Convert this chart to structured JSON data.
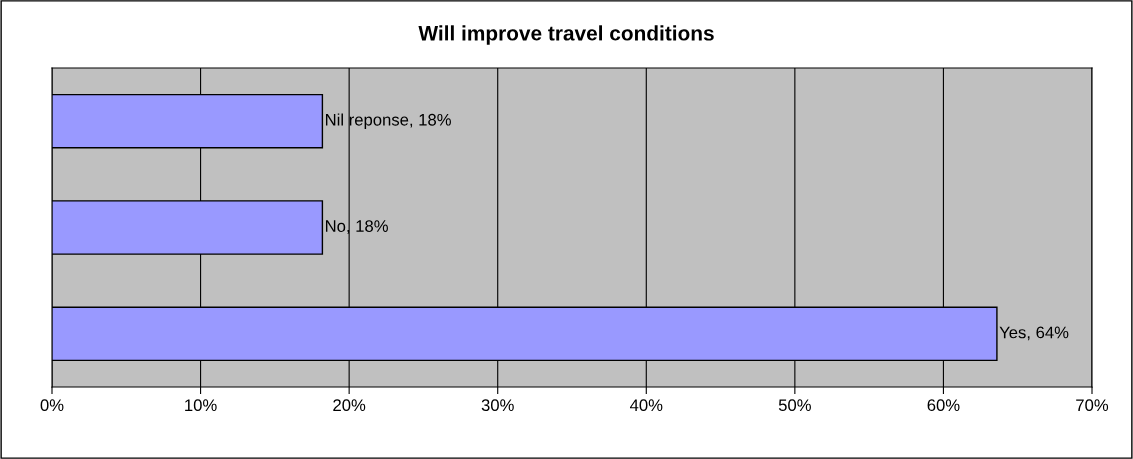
{
  "chart_data": {
    "type": "bar",
    "orientation": "horizontal",
    "title": "Will improve travel conditions",
    "categories": [
      null,
      null,
      null
    ],
    "values": [
      18.2,
      18.2,
      63.6
    ],
    "value_labels": [
      "Nil reponse, 18%",
      "No, 18%",
      "Yes, 64%"
    ],
    "color": "#9999ff",
    "xlim": [
      0,
      70
    ],
    "xticks": [
      {
        "value": 0,
        "label": "0%"
      },
      {
        "value": 10,
        "label": "10%"
      },
      {
        "value": 20,
        "label": "20%"
      },
      {
        "value": 30,
        "label": "30%"
      },
      {
        "value": 40,
        "label": "40%"
      },
      {
        "value": 50,
        "label": "50%"
      },
      {
        "value": 60,
        "label": "60%"
      },
      {
        "value": 70,
        "label": "70%"
      }
    ],
    "grid": "x",
    "tick_labels": "x",
    "legend": false
  }
}
